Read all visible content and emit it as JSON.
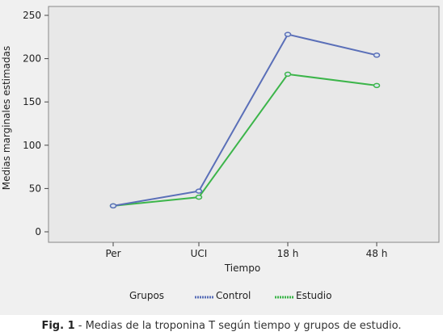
{
  "chart_data": {
    "type": "line",
    "categories": [
      "Per",
      "UCI",
      "18 h",
      "48 h"
    ],
    "series": [
      {
        "name": "Control",
        "values": [
          30,
          47,
          228,
          204
        ],
        "color": "#5a6fb8"
      },
      {
        "name": "Estudio",
        "values": [
          30,
          40,
          182,
          169
        ],
        "color": "#3cb54a"
      }
    ],
    "xlabel": "Tiempo",
    "ylabel": "Medias marginales estimadas",
    "ylim": [
      0,
      250
    ],
    "yticks": [
      0,
      50,
      100,
      150,
      200,
      250
    ],
    "grid": false,
    "legend": {
      "title": "Grupos",
      "position": "bottom"
    }
  },
  "caption": {
    "label": "Fig. 1",
    "text": " - Medias de la troponina T según tiempo y grupos de estudio."
  },
  "colors": {
    "plot_background": "#e8e8e8",
    "figure_background": "#f0f0f0"
  }
}
